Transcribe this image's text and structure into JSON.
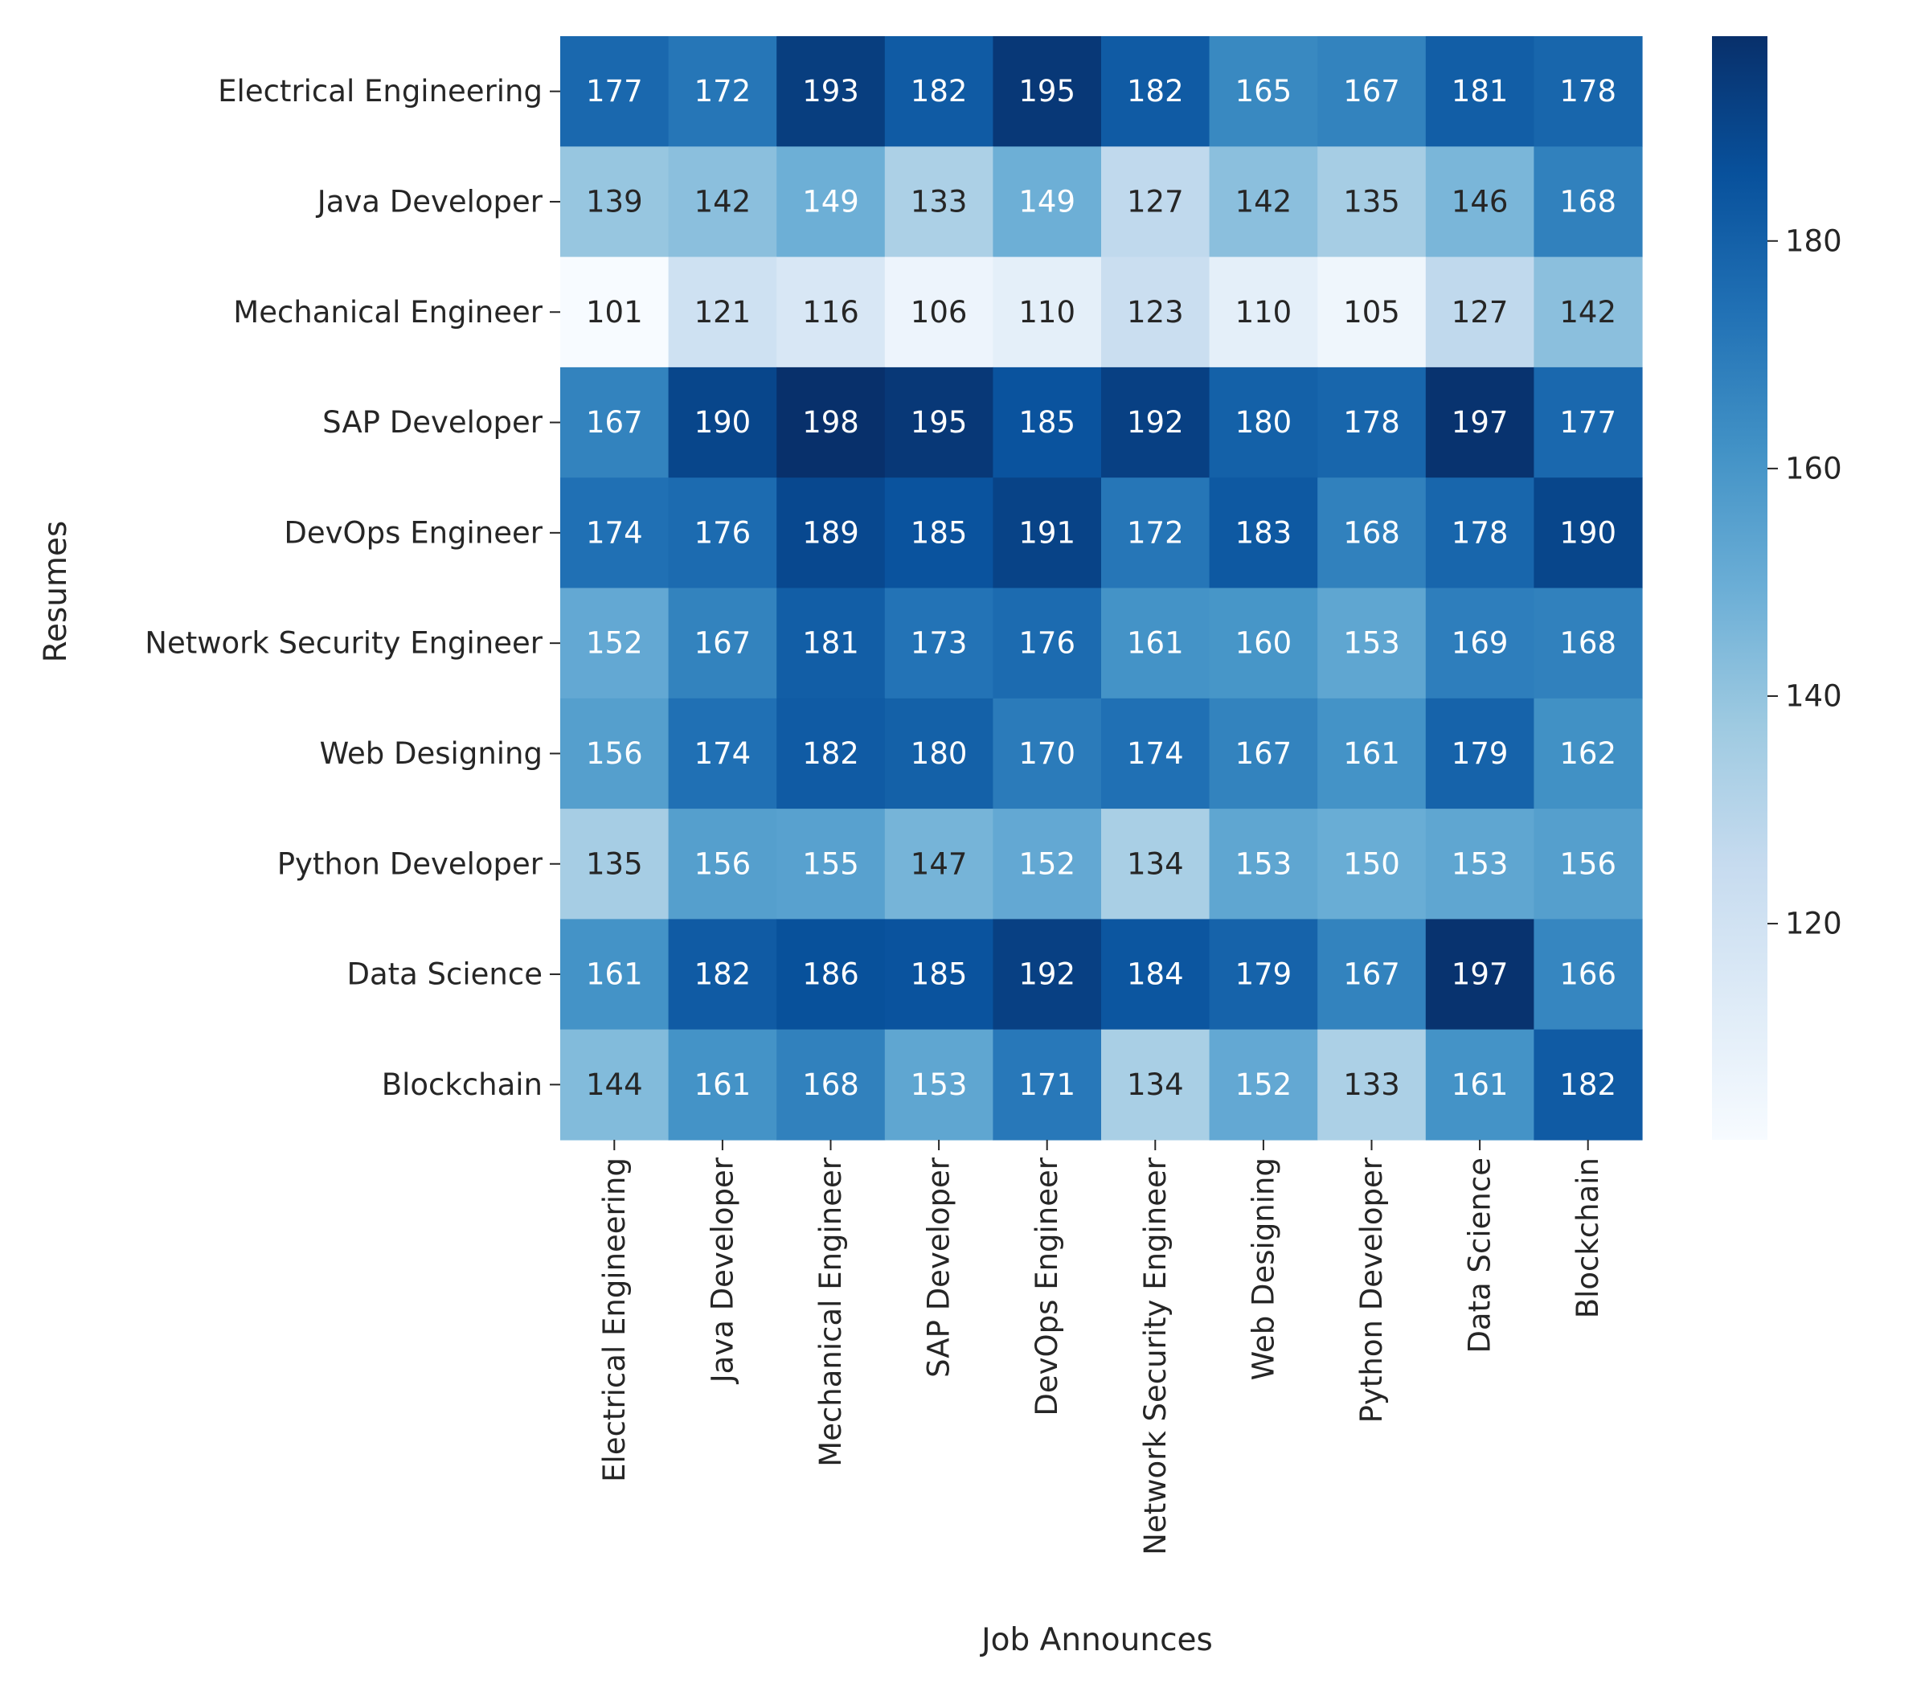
{
  "chart_data": {
    "type": "heatmap",
    "title": "",
    "xlabel": "Job Announces",
    "ylabel": "Resumes",
    "x_categories": [
      "Electrical Engineering",
      "Java Developer",
      "Mechanical Engineer",
      "SAP Developer",
      "DevOps Engineer",
      "Network Security Engineer",
      "Web Designing",
      "Python Developer",
      "Data Science",
      "Blockchain"
    ],
    "y_categories": [
      "Electrical Engineering",
      "Java Developer",
      "Mechanical Engineer",
      "SAP Developer",
      "DevOps Engineer",
      "Network Security Engineer",
      "Web Designing",
      "Python Developer",
      "Data Science",
      "Blockchain"
    ],
    "values": [
      [
        177,
        172,
        193,
        182,
        195,
        182,
        165,
        167,
        181,
        178
      ],
      [
        139,
        142,
        149,
        133,
        149,
        127,
        142,
        135,
        146,
        168
      ],
      [
        101,
        121,
        116,
        106,
        110,
        123,
        110,
        105,
        127,
        142
      ],
      [
        167,
        190,
        198,
        195,
        185,
        192,
        180,
        178,
        197,
        177
      ],
      [
        174,
        176,
        189,
        185,
        191,
        172,
        183,
        168,
        178,
        190
      ],
      [
        152,
        167,
        181,
        173,
        176,
        161,
        160,
        153,
        169,
        168
      ],
      [
        156,
        174,
        182,
        180,
        170,
        174,
        167,
        161,
        179,
        162
      ],
      [
        135,
        156,
        155,
        147,
        152,
        134,
        153,
        150,
        153,
        156
      ],
      [
        161,
        182,
        186,
        185,
        192,
        184,
        179,
        167,
        197,
        166
      ],
      [
        144,
        161,
        168,
        153,
        171,
        134,
        152,
        133,
        161,
        182
      ]
    ],
    "colormap": "Blues",
    "color_range": [
      101,
      198
    ],
    "colorbar_ticks": [
      120,
      140,
      160,
      180
    ],
    "colors": {
      "text_light": "#ffffff",
      "text_dark": "#262626"
    }
  }
}
